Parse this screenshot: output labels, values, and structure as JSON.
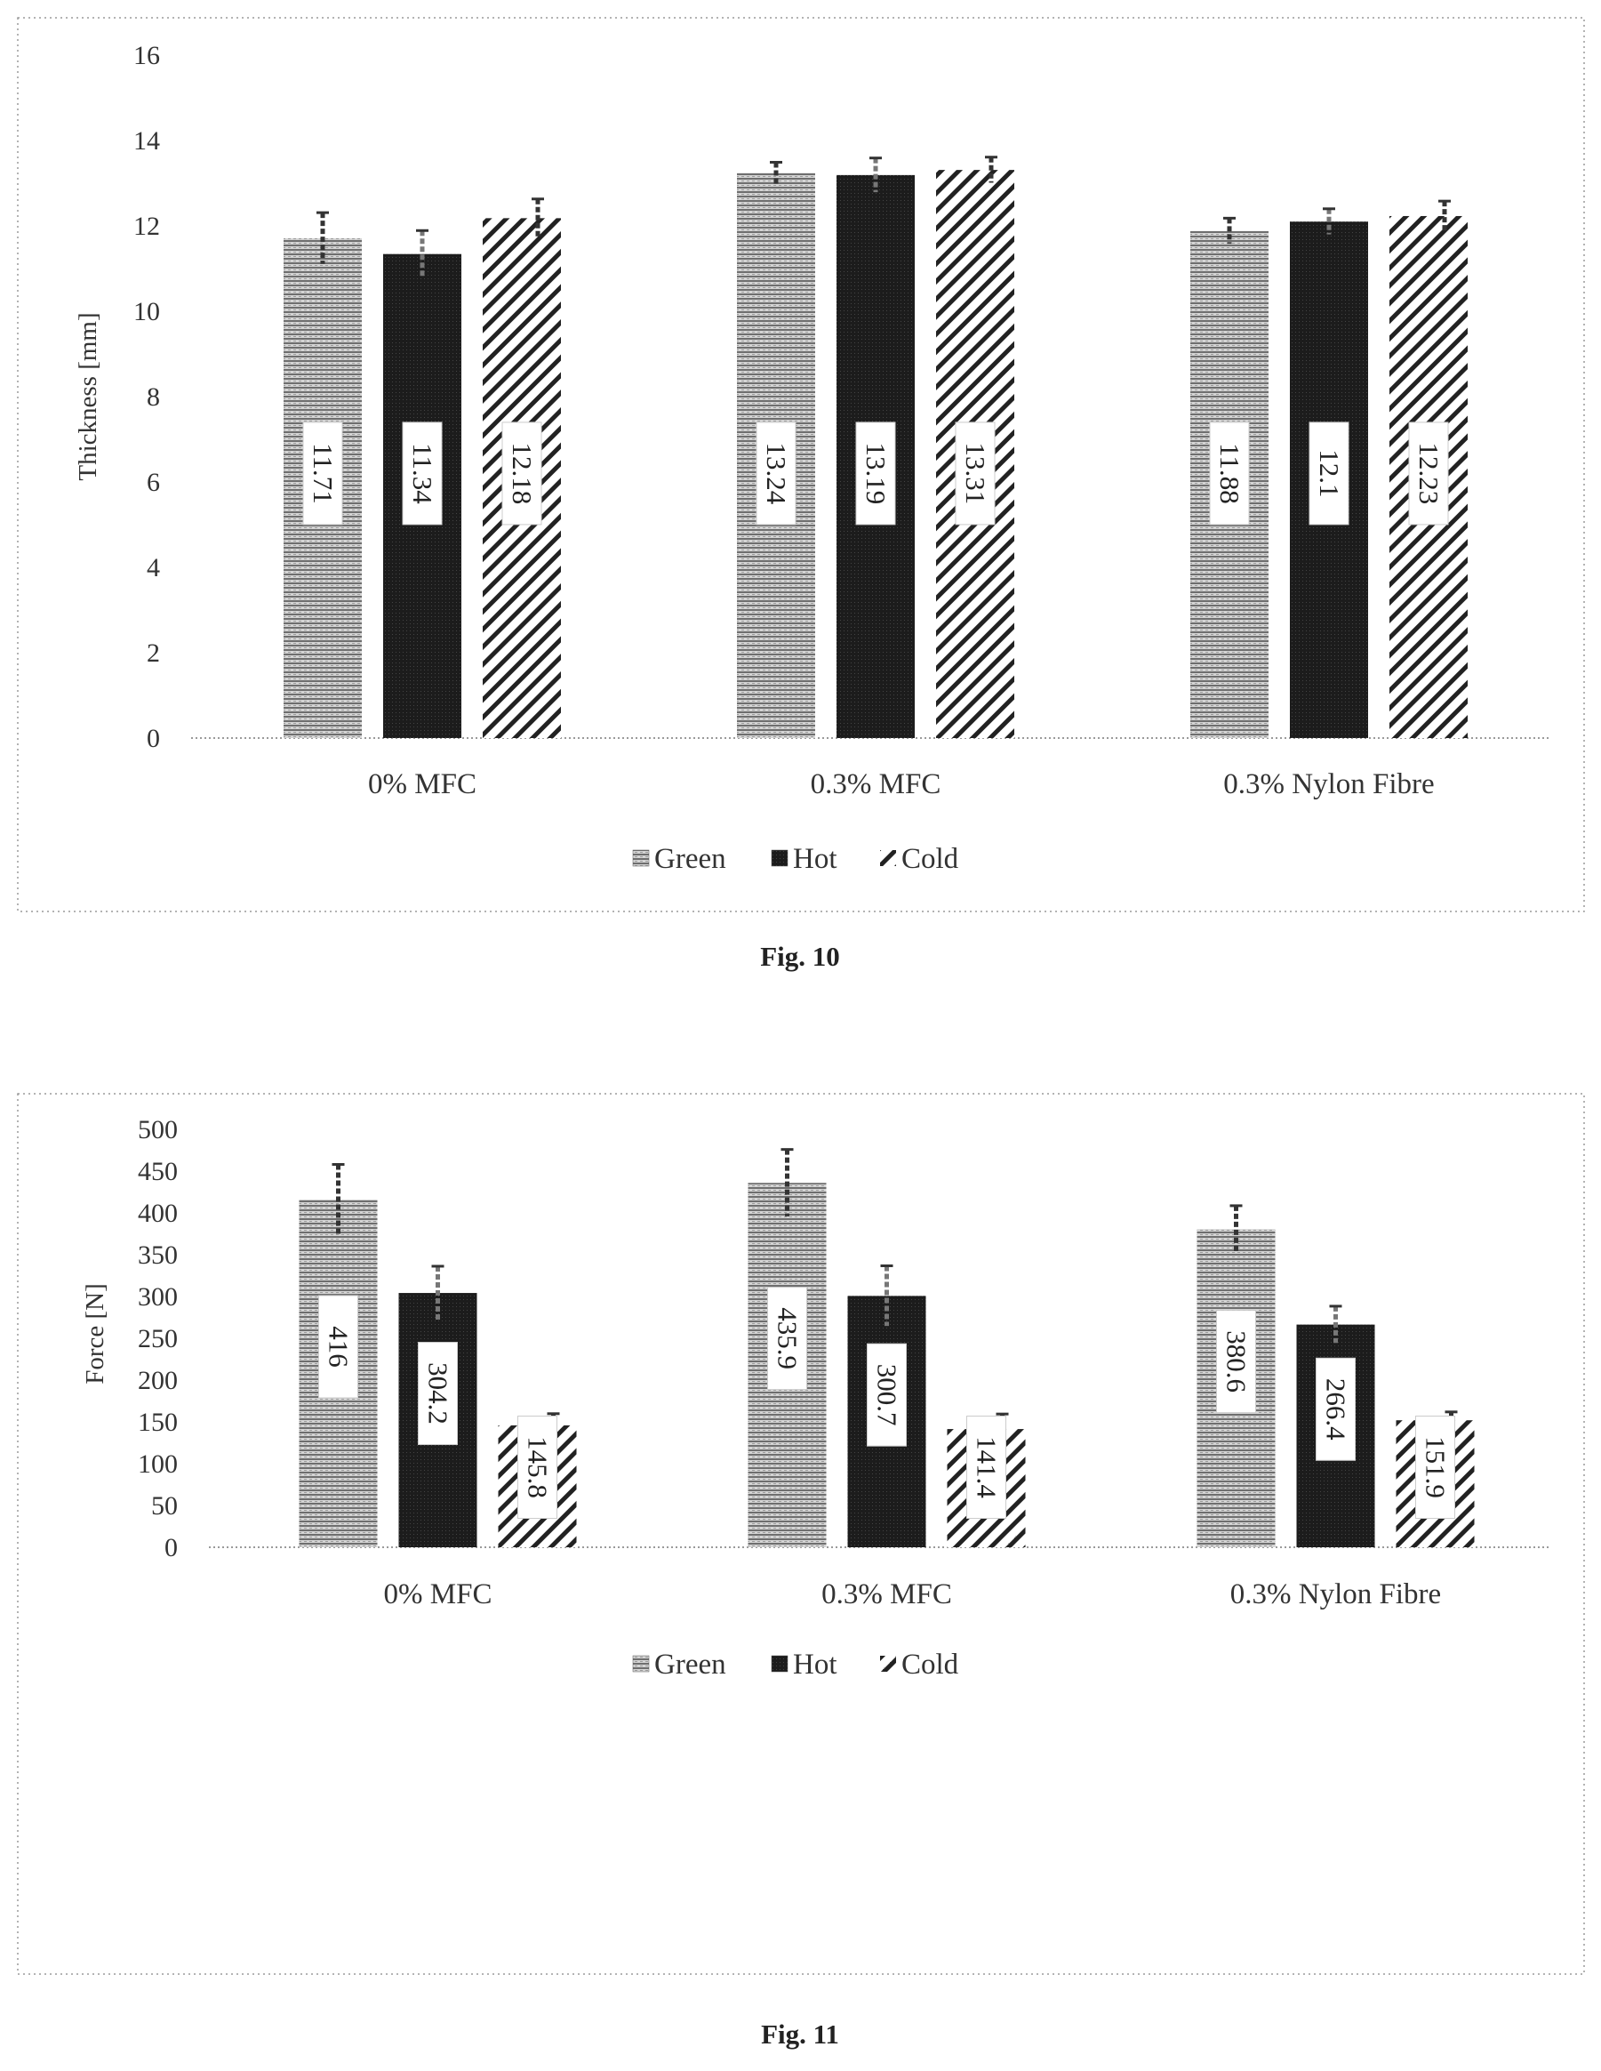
{
  "colors": {
    "green_fill": "#8a8a8a",
    "hot_fill": "#1c1c1c",
    "cold_stroke": "#222222",
    "frame": "#9a9a9a"
  },
  "chart_data": [
    {
      "type": "bar",
      "caption": "Fig. 10",
      "ylabel": "Thickness [mm]",
      "ylim": [
        0,
        16
      ],
      "yticks": [
        0,
        2,
        4,
        6,
        8,
        10,
        12,
        14,
        16
      ],
      "categories": [
        "0% MFC",
        "0.3% MFC",
        "0.3% Nylon Fibre"
      ],
      "series": [
        {
          "name": "Green",
          "values": [
            11.71,
            13.24,
            11.88
          ],
          "labels": [
            "11.71",
            "13.24",
            "11.88"
          ],
          "errors": [
            0.6,
            0.25,
            0.3
          ]
        },
        {
          "name": "Hot",
          "values": [
            11.34,
            13.19,
            12.1
          ],
          "labels": [
            "11.34",
            "13.19",
            "12.1"
          ],
          "errors": [
            0.55,
            0.4,
            0.3
          ]
        },
        {
          "name": "Cold",
          "values": [
            12.18,
            13.31,
            12.23
          ],
          "labels": [
            "12.18",
            "13.31",
            "12.23"
          ],
          "errors": [
            0.45,
            0.3,
            0.35
          ]
        }
      ],
      "legend": {
        "position": "bottom",
        "entries": [
          "Green",
          "Hot",
          "Cold"
        ]
      },
      "grid": false
    },
    {
      "type": "bar",
      "caption": "Fig. 11",
      "ylabel": "Force [N]",
      "ylim": [
        0,
        500
      ],
      "yticks": [
        0,
        50,
        100,
        150,
        200,
        250,
        300,
        350,
        400,
        450,
        500
      ],
      "categories": [
        "0% MFC",
        "0.3% MFC",
        "0.3% Nylon Fibre"
      ],
      "series": [
        {
          "name": "Green",
          "values": [
            416,
            435.9,
            380.6
          ],
          "labels": [
            "416",
            "435.9",
            "380.6"
          ],
          "errors": [
            42,
            40,
            28
          ]
        },
        {
          "name": "Hot",
          "values": [
            304.2,
            300.7,
            266.4
          ],
          "labels": [
            "304.2",
            "300.7",
            "266.4"
          ],
          "errors": [
            32,
            36,
            22
          ]
        },
        {
          "name": "Cold",
          "values": [
            145.8,
            141.4,
            151.9
          ],
          "labels": [
            "145.8",
            "141.4",
            "151.9"
          ],
          "errors": [
            14,
            18,
            10
          ]
        }
      ],
      "legend": {
        "position": "bottom",
        "entries": [
          "Green",
          "Hot",
          "Cold"
        ]
      },
      "grid": false
    }
  ]
}
